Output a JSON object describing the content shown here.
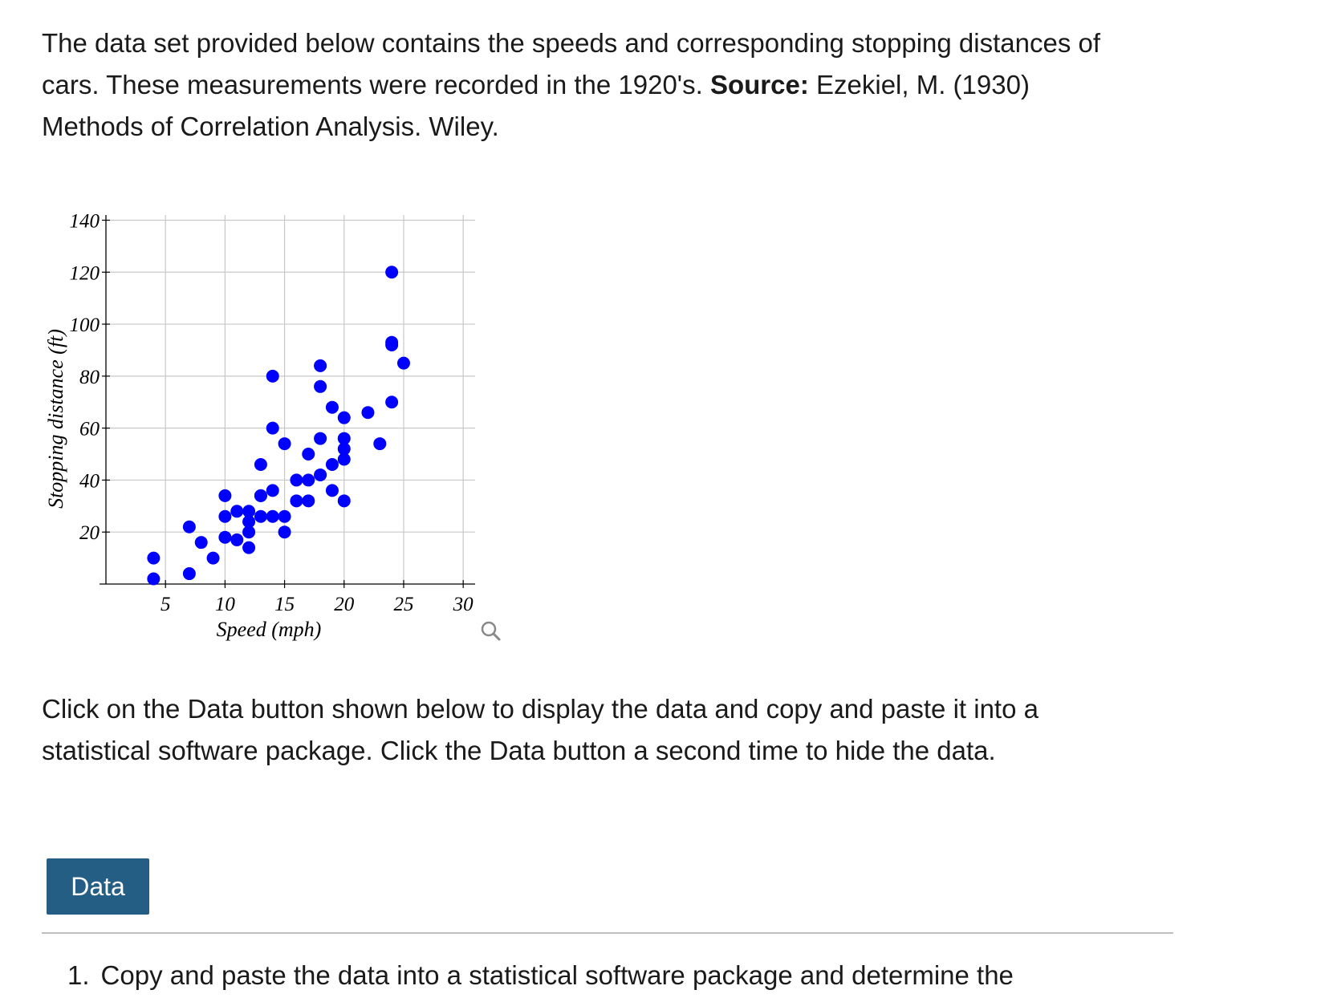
{
  "intro": {
    "text_before": "The data set provided below contains the speeds and corresponding stopping distances of cars. These measurements were recorded in the 1920's. ",
    "source_label": "Source:",
    "text_after": " Ezekiel, M. (1930) Methods of Correlation Analysis. Wiley."
  },
  "instructions": "Click on the Data button shown below to display the data and copy and paste it into a statistical software package. Click the Data button a second time to hide the data.",
  "data_button_label": "Data",
  "question": {
    "number": "1.",
    "text": "Copy and paste the data into a statistical software package and determine the"
  },
  "zoom_icon": "magnifier-icon",
  "chart_data": {
    "type": "scatter",
    "title": "",
    "xlabel": "Speed (mph)",
    "ylabel": "Stopping distance (ft)",
    "xlim": [
      0,
      31
    ],
    "ylim": [
      0,
      142
    ],
    "xticks": [
      5,
      10,
      15,
      20,
      25,
      30
    ],
    "yticks": [
      20,
      40,
      60,
      80,
      100,
      120,
      140
    ],
    "grid": true,
    "point_color": "#0000ff",
    "x": [
      4,
      4,
      7,
      7,
      8,
      9,
      10,
      10,
      10,
      11,
      11,
      12,
      12,
      12,
      12,
      13,
      13,
      13,
      13,
      14,
      14,
      14,
      14,
      15,
      15,
      15,
      16,
      16,
      17,
      17,
      17,
      18,
      18,
      18,
      18,
      19,
      19,
      19,
      20,
      20,
      20,
      20,
      20,
      22,
      23,
      24,
      24,
      24,
      24,
      25
    ],
    "y": [
      2,
      10,
      4,
      22,
      16,
      10,
      18,
      26,
      34,
      17,
      28,
      14,
      20,
      24,
      28,
      26,
      34,
      34,
      46,
      26,
      36,
      60,
      80,
      20,
      26,
      54,
      32,
      40,
      32,
      40,
      50,
      42,
      56,
      76,
      84,
      36,
      46,
      68,
      32,
      48,
      52,
      56,
      64,
      66,
      54,
      70,
      92,
      93,
      120,
      85
    ]
  }
}
